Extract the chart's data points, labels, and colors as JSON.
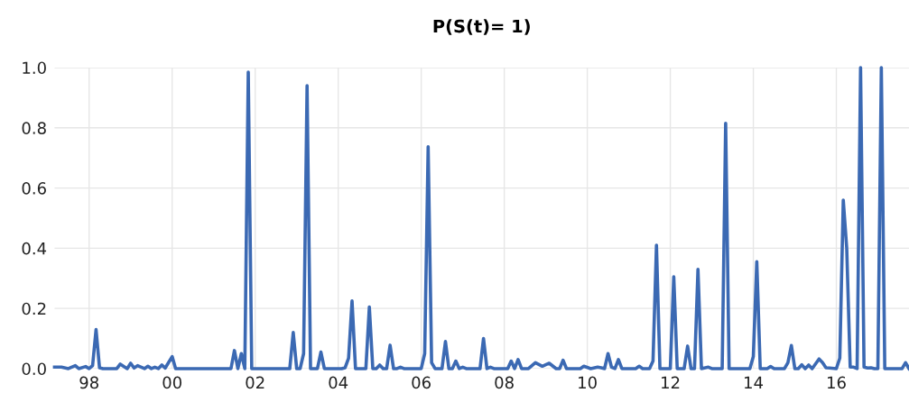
{
  "chart_data": {
    "type": "line",
    "title": "P(S(t)= 1)",
    "x": [
      "1997-03",
      "1997-05",
      "1997-07",
      "1997-09",
      "1997-10",
      "1997-12",
      "1998-01",
      "1998-02",
      "1998-03",
      "1998-04",
      "1998-05",
      "1998-09",
      "1998-10",
      "1998-12",
      "1999-01",
      "1999-02",
      "1999-03",
      "1999-05",
      "1999-06",
      "1999-07",
      "1999-08",
      "1999-09",
      "1999-10",
      "1999-11",
      "2000-01",
      "2000-02",
      "2001-06",
      "2001-07",
      "2001-08",
      "2001-09",
      "2001-10",
      "2001-11",
      "2001-12",
      "2002-11",
      "2002-12",
      "2003-01",
      "2003-02",
      "2003-03",
      "2003-04",
      "2003-05",
      "2003-07",
      "2003-08",
      "2003-09",
      "2004-02",
      "2004-03",
      "2004-04",
      "2004-05",
      "2004-06",
      "2004-09",
      "2004-10",
      "2004-11",
      "2004-12",
      "2005-01",
      "2005-02",
      "2005-03",
      "2005-04",
      "2005-05",
      "2005-06",
      "2005-07",
      "2005-08",
      "2006-01",
      "2006-02",
      "2006-03",
      "2006-04",
      "2006-05",
      "2006-07",
      "2006-08",
      "2006-09",
      "2006-10",
      "2006-11",
      "2006-12",
      "2007-01",
      "2007-02",
      "2007-06",
      "2007-07",
      "2007-08",
      "2007-09",
      "2007-10",
      "2008-02",
      "2008-03",
      "2008-04",
      "2008-05",
      "2008-06",
      "2008-08",
      "2008-10",
      "2008-12",
      "2009-02",
      "2009-04",
      "2009-05",
      "2009-06",
      "2009-07",
      "2009-11",
      "2009-12",
      "2010-02",
      "2010-04",
      "2010-05",
      "2010-06",
      "2010-07",
      "2010-08",
      "2010-09",
      "2010-10",
      "2010-11",
      "2011-03",
      "2011-04",
      "2011-05",
      "2011-07",
      "2011-08",
      "2011-09",
      "2011-10",
      "2012-01",
      "2012-02",
      "2012-03",
      "2012-05",
      "2012-06",
      "2012-07",
      "2012-08",
      "2012-09",
      "2012-10",
      "2012-12",
      "2013-01",
      "2013-04",
      "2013-05",
      "2013-06",
      "2013-12",
      "2014-01",
      "2014-02",
      "2014-03",
      "2014-05",
      "2014-06",
      "2014-07",
      "2014-10",
      "2014-11",
      "2014-12",
      "2015-01",
      "2015-02",
      "2015-03",
      "2015-04",
      "2015-05",
      "2015-06",
      "2015-08",
      "2015-09",
      "2015-10",
      "2015-11",
      "2016-01",
      "2016-02",
      "2016-03",
      "2016-04",
      "2016-05",
      "2016-06",
      "2016-07",
      "2016-08",
      "2016-09",
      "2016-10",
      "2016-11",
      "2016-12",
      "2017-01",
      "2017-02",
      "2017-03",
      "2017-08",
      "2017-09",
      "2017-10"
    ],
    "series": [
      {
        "color": "#3b69b3",
        "values": [
          0.005,
          0.005,
          0,
          0.01,
          0,
          0.007,
          0,
          0.01,
          0.13,
          0.003,
          0,
          0,
          0.015,
          0,
          0.018,
          0.002,
          0.01,
          0,
          0.008,
          0,
          0.005,
          0,
          0.012,
          0.002,
          0.04,
          0,
          0,
          0.06,
          0,
          0.05,
          0,
          0.985,
          0,
          0,
          0.12,
          0,
          0,
          0.05,
          0.94,
          0,
          0,
          0.055,
          0,
          0,
          0.003,
          0.035,
          0.225,
          0,
          0,
          0.205,
          0,
          0,
          0.012,
          0,
          0,
          0.078,
          0,
          0,
          0.005,
          0,
          0,
          0.05,
          0.737,
          0.02,
          0,
          0,
          0.09,
          0,
          0,
          0.025,
          0,
          0.005,
          0,
          0,
          0.1,
          0,
          0.005,
          0,
          0,
          0.025,
          0,
          0.03,
          0,
          0,
          0.02,
          0.008,
          0.018,
          0,
          0,
          0.028,
          0,
          0,
          0.008,
          0,
          0.005,
          0.003,
          0,
          0.05,
          0.005,
          0,
          0.03,
          0,
          0,
          0.008,
          0,
          0,
          0.025,
          0.41,
          0,
          0,
          0.305,
          0,
          0,
          0.075,
          0,
          0,
          0.33,
          0,
          0.005,
          0,
          0,
          0.815,
          0,
          0,
          0.04,
          0.355,
          0,
          0,
          0.007,
          0,
          0,
          0.02,
          0.077,
          0,
          0,
          0.013,
          0,
          0.012,
          0,
          0.032,
          0.02,
          0.003,
          0.002,
          0,
          0.035,
          0.56,
          0.4,
          0.005,
          0.005,
          0,
          1.0,
          0.005,
          0.002,
          0.003,
          0,
          0,
          1.0,
          0,
          0,
          0.02,
          0
        ]
      }
    ],
    "xlim": [
      "1997-03",
      "2017-10"
    ],
    "xticks": [
      {
        "value": "1998-01",
        "label": "98"
      },
      {
        "value": "2000-01",
        "label": "00"
      },
      {
        "value": "2002-01",
        "label": "02"
      },
      {
        "value": "2004-01",
        "label": "04"
      },
      {
        "value": "2006-01",
        "label": "06"
      },
      {
        "value": "2008-01",
        "label": "08"
      },
      {
        "value": "2010-01",
        "label": "10"
      },
      {
        "value": "2012-01",
        "label": "12"
      },
      {
        "value": "2014-01",
        "label": "14"
      },
      {
        "value": "2016-01",
        "label": "16"
      }
    ],
    "ylim": [
      0,
      1.0
    ],
    "yticks": [
      {
        "value": 0,
        "label": "0.0"
      },
      {
        "value": 0.2,
        "label": "0.2"
      },
      {
        "value": 0.4,
        "label": "0.4"
      },
      {
        "value": 0.6,
        "label": "0.6"
      },
      {
        "value": 0.8,
        "label": "0.8"
      },
      {
        "value": 1.0,
        "label": "1.0"
      }
    ],
    "grid": true,
    "line_style": "solid",
    "marker": "none"
  }
}
